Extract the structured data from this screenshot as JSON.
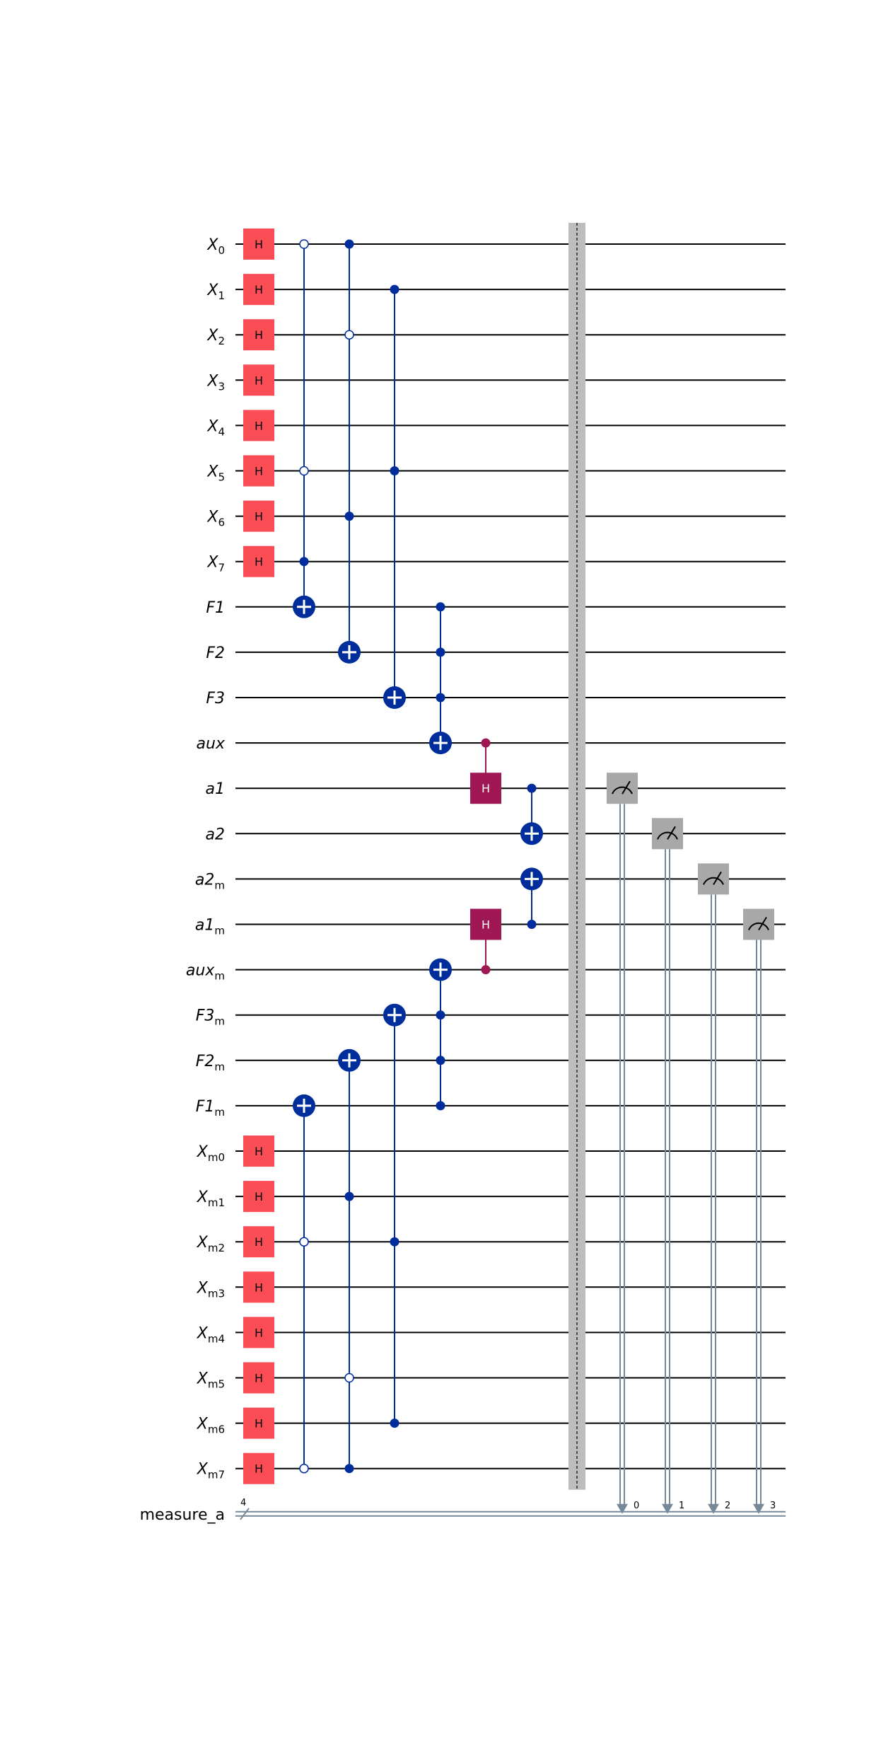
{
  "colors": {
    "wire": "#000000",
    "h_gate": "#fa4d56",
    "control_blue": "#002d9c",
    "magenta": "#9f1853",
    "measure_gate": "#a8a8a8",
    "classical": "#778899",
    "barrier": "#bdbdbd"
  },
  "qubits": [
    {
      "base": "X",
      "sub": "0"
    },
    {
      "base": "X",
      "sub": "1"
    },
    {
      "base": "X",
      "sub": "2"
    },
    {
      "base": "X",
      "sub": "3"
    },
    {
      "base": "X",
      "sub": "4"
    },
    {
      "base": "X",
      "sub": "5"
    },
    {
      "base": "X",
      "sub": "6"
    },
    {
      "base": "X",
      "sub": "7"
    },
    {
      "base": "F1",
      "sub": ""
    },
    {
      "base": "F2",
      "sub": ""
    },
    {
      "base": "F3",
      "sub": ""
    },
    {
      "base": "aux",
      "sub": ""
    },
    {
      "base": "a1",
      "sub": ""
    },
    {
      "base": "a2",
      "sub": ""
    },
    {
      "base": "a2",
      "sub": "m"
    },
    {
      "base": "a1",
      "sub": "m"
    },
    {
      "base": "aux",
      "sub": "m"
    },
    {
      "base": "F3",
      "sub": "m"
    },
    {
      "base": "F2",
      "sub": "m"
    },
    {
      "base": "F1",
      "sub": "m"
    },
    {
      "base": "X",
      "sub": "m0"
    },
    {
      "base": "X",
      "sub": "m1"
    },
    {
      "base": "X",
      "sub": "m2"
    },
    {
      "base": "X",
      "sub": "m3"
    },
    {
      "base": "X",
      "sub": "m4"
    },
    {
      "base": "X",
      "sub": "m5"
    },
    {
      "base": "X",
      "sub": "m6"
    },
    {
      "base": "X",
      "sub": "m7"
    }
  ],
  "classical_register": {
    "name": "measure_a",
    "size": "4"
  },
  "gate_label": "H",
  "h_gates": [
    0,
    1,
    2,
    3,
    4,
    5,
    6,
    7,
    20,
    21,
    22,
    23,
    24,
    25,
    26,
    27
  ],
  "multi_gates": [
    {
      "col": 0,
      "controls": [
        [
          0,
          "open"
        ],
        [
          5,
          "open"
        ],
        [
          7,
          "closed"
        ]
      ],
      "target": 8,
      "type": "x",
      "color": "blue"
    },
    {
      "col": 1,
      "controls": [
        [
          0,
          "closed"
        ],
        [
          2,
          "open"
        ],
        [
          6,
          "closed"
        ]
      ],
      "target": 9,
      "type": "x",
      "color": "blue"
    },
    {
      "col": 2,
      "controls": [
        [
          1,
          "closed"
        ],
        [
          5,
          "closed"
        ]
      ],
      "target": 10,
      "type": "x",
      "color": "blue"
    },
    {
      "col": 3,
      "controls": [
        [
          8,
          "closed"
        ],
        [
          9,
          "closed"
        ],
        [
          10,
          "closed"
        ]
      ],
      "target": 11,
      "type": "x",
      "color": "blue"
    },
    {
      "col": 4,
      "controls": [
        [
          11,
          "closed"
        ]
      ],
      "target": 12,
      "type": "h",
      "color": "magenta"
    },
    {
      "col": 5,
      "controls": [
        [
          12,
          "closed"
        ]
      ],
      "target": 13,
      "type": "x",
      "color": "blue"
    },
    {
      "col": 5,
      "controls": [
        [
          15,
          "closed"
        ]
      ],
      "target": 14,
      "type": "x",
      "color": "blue"
    },
    {
      "col": 4,
      "controls": [
        [
          16,
          "closed"
        ]
      ],
      "target": 15,
      "type": "h",
      "color": "magenta"
    },
    {
      "col": 3,
      "controls": [
        [
          17,
          "closed"
        ],
        [
          18,
          "closed"
        ],
        [
          19,
          "closed"
        ]
      ],
      "target": 16,
      "type": "x",
      "color": "blue"
    },
    {
      "col": 2,
      "controls": [
        [
          22,
          "closed"
        ],
        [
          26,
          "closed"
        ]
      ],
      "target": 17,
      "type": "x",
      "color": "blue"
    },
    {
      "col": 1,
      "controls": [
        [
          21,
          "closed"
        ],
        [
          25,
          "open"
        ],
        [
          27,
          "closed"
        ]
      ],
      "target": 18,
      "type": "x",
      "color": "blue"
    },
    {
      "col": 0,
      "controls": [
        [
          22,
          "open"
        ],
        [
          27,
          "open"
        ]
      ],
      "target": 19,
      "type": "x",
      "color": "blue"
    }
  ],
  "measurements": [
    {
      "qubit": 12,
      "bit": "0"
    },
    {
      "qubit": 13,
      "bit": "1"
    },
    {
      "qubit": 14,
      "bit": "2"
    },
    {
      "qubit": 15,
      "bit": "3"
    }
  ]
}
